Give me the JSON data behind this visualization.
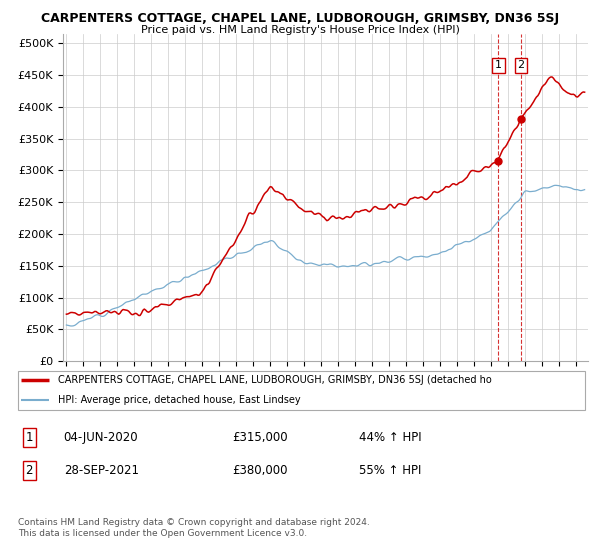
{
  "title": "CARPENTERS COTTAGE, CHAPEL LANE, LUDBOROUGH, GRIMSBY, DN36 5SJ",
  "subtitle": "Price paid vs. HM Land Registry's House Price Index (HPI)",
  "ylabel_ticks": [
    "£0",
    "£50K",
    "£100K",
    "£150K",
    "£200K",
    "£250K",
    "£300K",
    "£350K",
    "£400K",
    "£450K",
    "£500K"
  ],
  "ytick_values": [
    0,
    50000,
    100000,
    150000,
    200000,
    250000,
    300000,
    350000,
    400000,
    450000,
    500000
  ],
  "ylim": [
    0,
    515000
  ],
  "red_color": "#cc0000",
  "blue_color": "#7aadce",
  "t1_year": 2020.42,
  "t2_year": 2021.75,
  "t1_price": 315000,
  "t2_price": 380000,
  "legend_line1": "CARPENTERS COTTAGE, CHAPEL LANE, LUDBOROUGH, GRIMSBY, DN36 5SJ (detached ho",
  "legend_line2": "HPI: Average price, detached house, East Lindsey",
  "footer1": "Contains HM Land Registry data © Crown copyright and database right 2024.",
  "footer2": "This data is licensed under the Open Government Licence v3.0.",
  "xstart_year": 1995,
  "xend_year": 2025
}
